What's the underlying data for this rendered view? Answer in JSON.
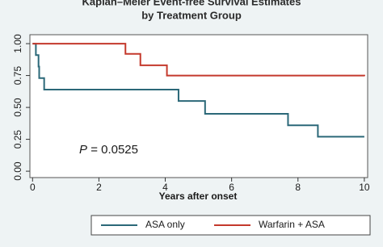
{
  "chart_data": {
    "type": "step",
    "title": "Kaplan–Meier Event-free Survival Estimates",
    "subtitle": "by Treatment Group",
    "x_label": "Years after onset",
    "annotation_italic": "P",
    "annotation": "= 0.0525",
    "xlim": [
      -0.08,
      10.1
    ],
    "ylim": [
      -0.05,
      1.07
    ],
    "xticks": [
      0,
      2,
      4,
      6,
      8,
      10
    ],
    "yticks": [
      {
        "value": 0,
        "label": "0.00"
      },
      0.25,
      {
        "value": 0.5,
        "label": "0.50"
      },
      0.75,
      {
        "value": 1,
        "label": "1.00"
      }
    ],
    "series": [
      {
        "name": "ASA only",
        "color": "#2b6878",
        "x": [
          0,
          0.1,
          0.18,
          0.2,
          0.35,
          4.4,
          5.2,
          7.7,
          8.6,
          10
        ],
        "values": [
          1,
          0.91,
          0.82,
          0.73,
          0.64,
          0.55,
          0.45,
          0.36,
          0.27,
          0.27
        ]
      },
      {
        "name": "Warfarin + ASA",
        "color": "#c4392c",
        "x": [
          0,
          2.8,
          3.25,
          4.05,
          10
        ],
        "values": [
          1,
          0.92,
          0.83,
          0.75,
          0.745
        ]
      }
    ]
  }
}
